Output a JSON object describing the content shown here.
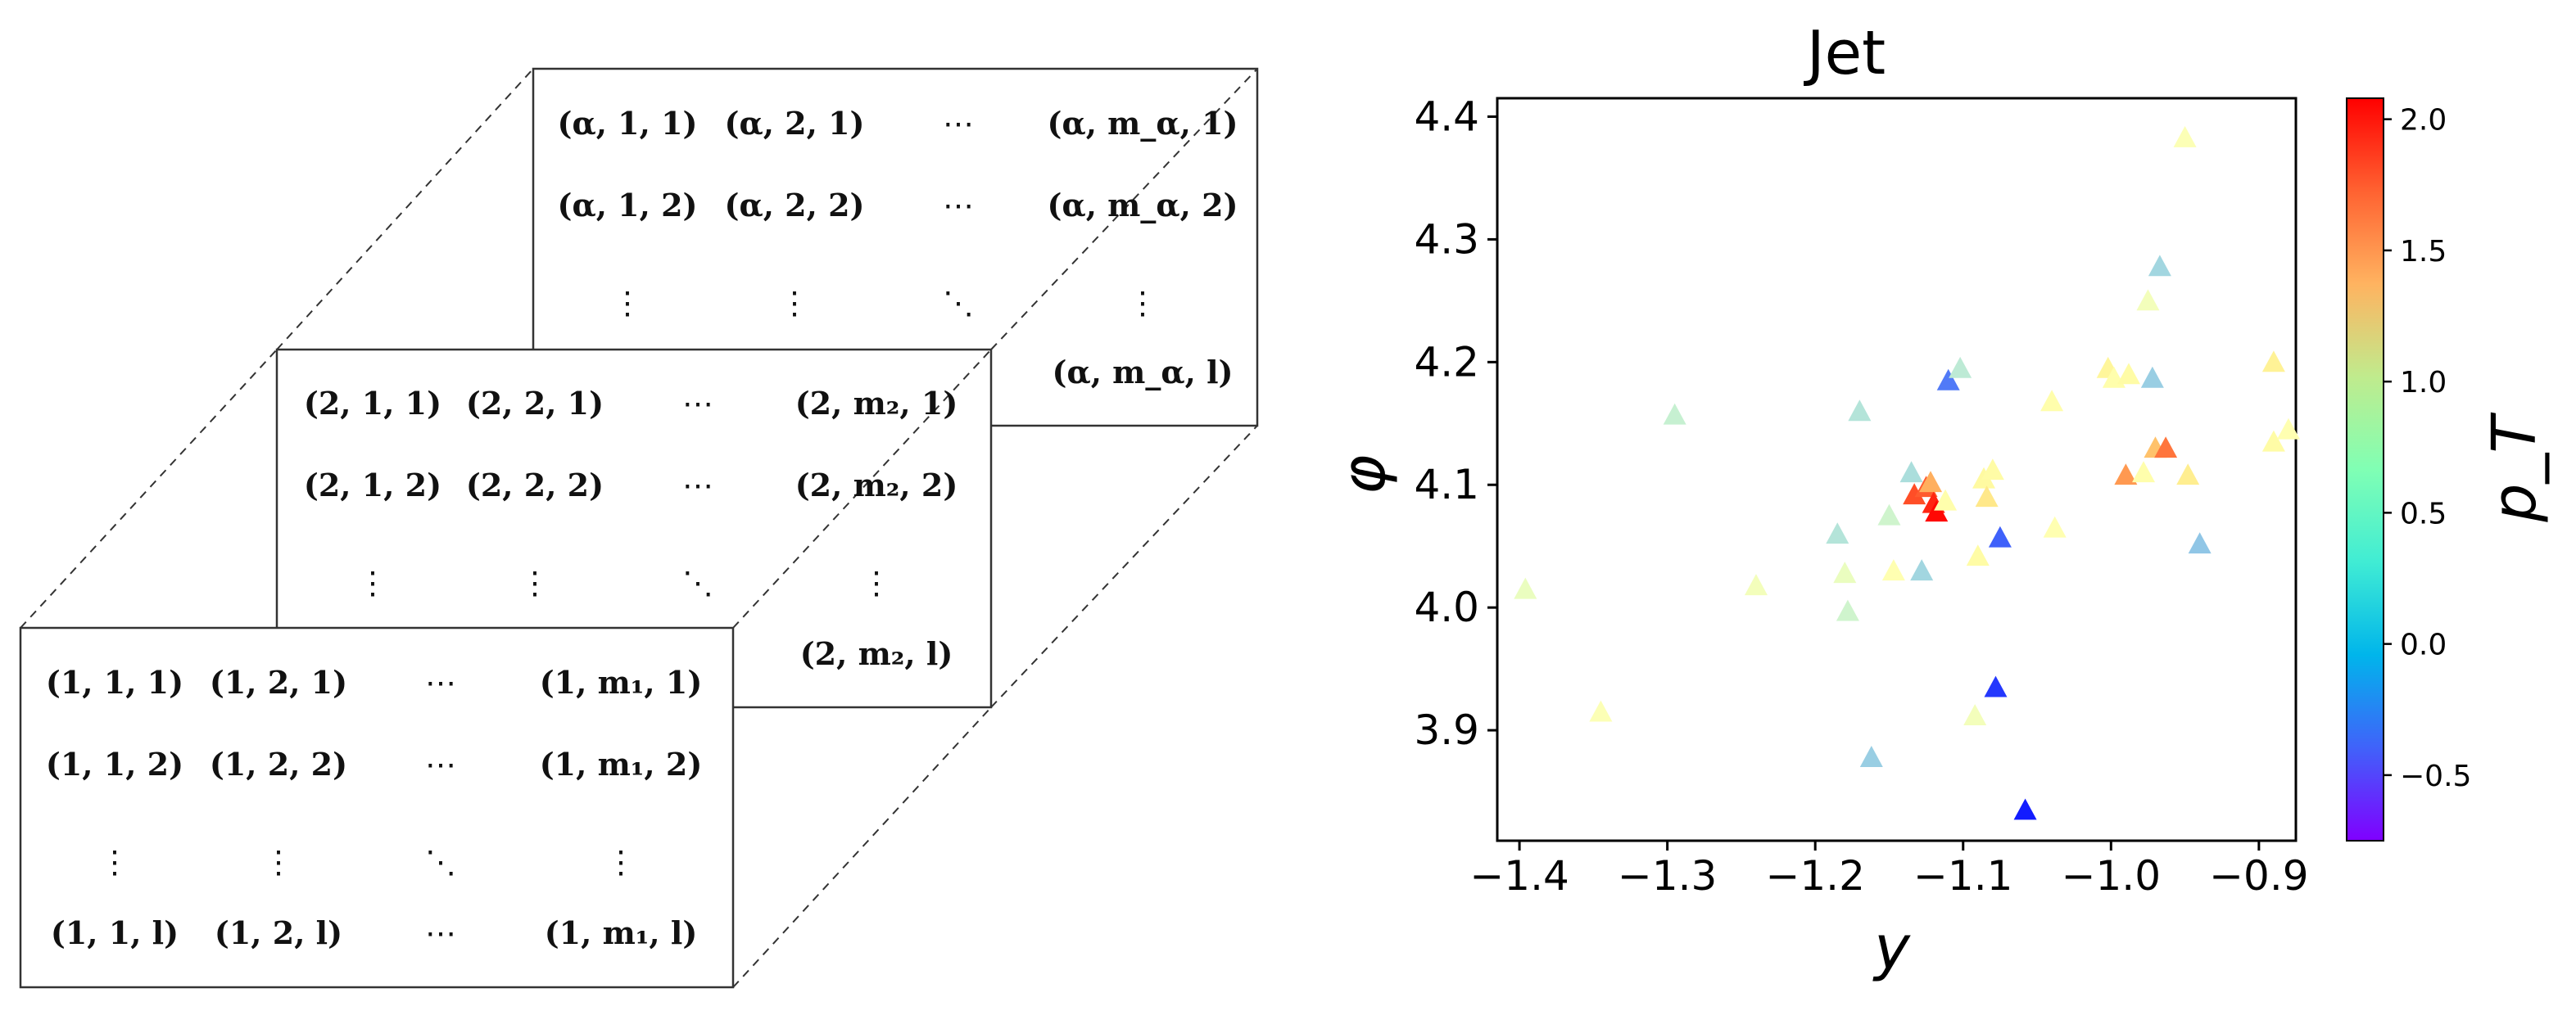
{
  "matrix_stack": {
    "layer_alpha": {
      "rows": [
        [
          "(α, 1, 1)",
          "(α, 2, 1)",
          "⋯",
          "(α, m_α, 1)"
        ],
        [
          "(α, 1, 2)",
          "(α, 2, 2)",
          "⋯",
          "(α, m_α, 2)"
        ],
        [
          "⋮",
          "⋮",
          "⋱",
          "⋮"
        ],
        [
          "",
          "",
          "",
          "(α, m_α, l)"
        ]
      ]
    },
    "layer_2": {
      "rows": [
        [
          "(2, 1, 1)",
          "(2, 2, 1)",
          "⋯",
          "(2, m₂, 1)"
        ],
        [
          "(2, 1, 2)",
          "(2, 2, 2)",
          "⋯",
          "(2, m₂, 2)"
        ],
        [
          "⋮",
          "⋮",
          "⋱",
          "⋮"
        ],
        [
          "",
          "",
          "",
          "(2, m₂, l)"
        ]
      ]
    },
    "layer_1": {
      "rows": [
        [
          "(1, 1, 1)",
          "(1, 2, 1)",
          "⋯",
          "(1, m₁, 1)"
        ],
        [
          "(1, 1, 2)",
          "(1, 2, 2)",
          "⋯",
          "(1, m₁, 2)"
        ],
        [
          "⋮",
          "⋮",
          "⋱",
          "⋮"
        ],
        [
          "(1, 1, l)",
          "(1, 2, l)",
          "⋯",
          "(1, m₁, l)"
        ]
      ]
    }
  },
  "chart_data": {
    "type": "scatter",
    "title": "Jet",
    "xlabel": "y",
    "ylabel": "φ",
    "colorbar_label": "p_T",
    "xlim": [
      -1.415,
      -0.875
    ],
    "ylim": [
      3.81,
      4.415
    ],
    "xticks": [
      -1.4,
      -1.3,
      -1.2,
      -1.1,
      -1.0,
      -0.9
    ],
    "xtick_labels": [
      "−1.4",
      "−1.3",
      "−1.2",
      "−1.1",
      "−1.0",
      "−0.9"
    ],
    "yticks": [
      3.9,
      4.0,
      4.1,
      4.2,
      4.3,
      4.4
    ],
    "ytick_labels": [
      "3.9",
      "4.0",
      "4.1",
      "4.2",
      "4.3",
      "4.4"
    ],
    "colormap": "rainbow",
    "clim": [
      -0.75,
      2.08
    ],
    "cticks": [
      -0.5,
      0.0,
      0.5,
      1.0,
      1.5,
      2.0
    ],
    "ctick_labels": [
      "−0.5",
      "0.0",
      "0.5",
      "1.0",
      "1.5",
      "2.0"
    ],
    "marker": "triangle",
    "grid": false,
    "points": [
      {
        "x": -1.396,
        "y": 4.015,
        "pT": 0.55
      },
      {
        "x": -1.345,
        "y": 3.915,
        "pT": 0.65
      },
      {
        "x": -1.295,
        "y": 4.157,
        "pT": 0.35
      },
      {
        "x": -1.24,
        "y": 4.018,
        "pT": 0.6
      },
      {
        "x": -1.185,
        "y": 4.06,
        "pT": 0.25
      },
      {
        "x": -1.18,
        "y": 4.028,
        "pT": 0.55
      },
      {
        "x": -1.178,
        "y": 3.997,
        "pT": 0.4
      },
      {
        "x": -1.17,
        "y": 4.16,
        "pT": 0.25
      },
      {
        "x": -1.162,
        "y": 3.878,
        "pT": 0.1
      },
      {
        "x": -1.15,
        "y": 4.075,
        "pT": 0.4
      },
      {
        "x": -1.147,
        "y": 4.03,
        "pT": 0.7
      },
      {
        "x": -1.135,
        "y": 4.11,
        "pT": 0.2
      },
      {
        "x": -1.133,
        "y": 4.092,
        "pT": 1.8
      },
      {
        "x": -1.128,
        "y": 4.03,
        "pT": 0.15
      },
      {
        "x": -1.125,
        "y": 4.098,
        "pT": 1.75
      },
      {
        "x": -1.122,
        "y": 4.102,
        "pT": 1.4
      },
      {
        "x": -1.12,
        "y": 4.085,
        "pT": 1.95
      },
      {
        "x": -1.118,
        "y": 4.078,
        "pT": 2.05
      },
      {
        "x": -1.112,
        "y": 4.087,
        "pT": 0.75
      },
      {
        "x": -1.11,
        "y": 4.185,
        "pT": -0.3
      },
      {
        "x": -1.102,
        "y": 4.195,
        "pT": 0.3
      },
      {
        "x": -1.092,
        "y": 3.912,
        "pT": 0.6
      },
      {
        "x": -1.09,
        "y": 4.042,
        "pT": 0.8
      },
      {
        "x": -1.086,
        "y": 4.105,
        "pT": 0.85
      },
      {
        "x": -1.084,
        "y": 4.09,
        "pT": 1.05
      },
      {
        "x": -1.08,
        "y": 4.112,
        "pT": 0.8
      },
      {
        "x": -1.078,
        "y": 3.935,
        "pT": -0.55
      },
      {
        "x": -1.075,
        "y": 4.057,
        "pT": -0.4
      },
      {
        "x": -1.058,
        "y": 3.835,
        "pT": -0.65
      },
      {
        "x": -1.04,
        "y": 4.168,
        "pT": 0.75
      },
      {
        "x": -1.038,
        "y": 4.065,
        "pT": 0.7
      },
      {
        "x": -1.002,
        "y": 4.195,
        "pT": 0.9
      },
      {
        "x": -0.998,
        "y": 4.187,
        "pT": 0.75
      },
      {
        "x": -0.99,
        "y": 4.108,
        "pT": 1.5
      },
      {
        "x": -0.988,
        "y": 4.19,
        "pT": 0.8
      },
      {
        "x": -0.978,
        "y": 4.11,
        "pT": 0.75
      },
      {
        "x": -0.975,
        "y": 4.25,
        "pT": 0.6
      },
      {
        "x": -0.972,
        "y": 4.187,
        "pT": 0.1
      },
      {
        "x": -0.97,
        "y": 4.13,
        "pT": 1.3
      },
      {
        "x": -0.967,
        "y": 4.278,
        "pT": 0.15
      },
      {
        "x": -0.963,
        "y": 4.13,
        "pT": 1.65
      },
      {
        "x": -0.95,
        "y": 4.383,
        "pT": 0.65
      },
      {
        "x": -0.948,
        "y": 4.108,
        "pT": 1.0
      },
      {
        "x": -0.94,
        "y": 4.052,
        "pT": 0.05
      },
      {
        "x": -0.89,
        "y": 4.2,
        "pT": 0.95
      },
      {
        "x": -0.89,
        "y": 4.135,
        "pT": 0.8
      },
      {
        "x": -0.88,
        "y": 4.145,
        "pT": 0.7
      }
    ]
  }
}
